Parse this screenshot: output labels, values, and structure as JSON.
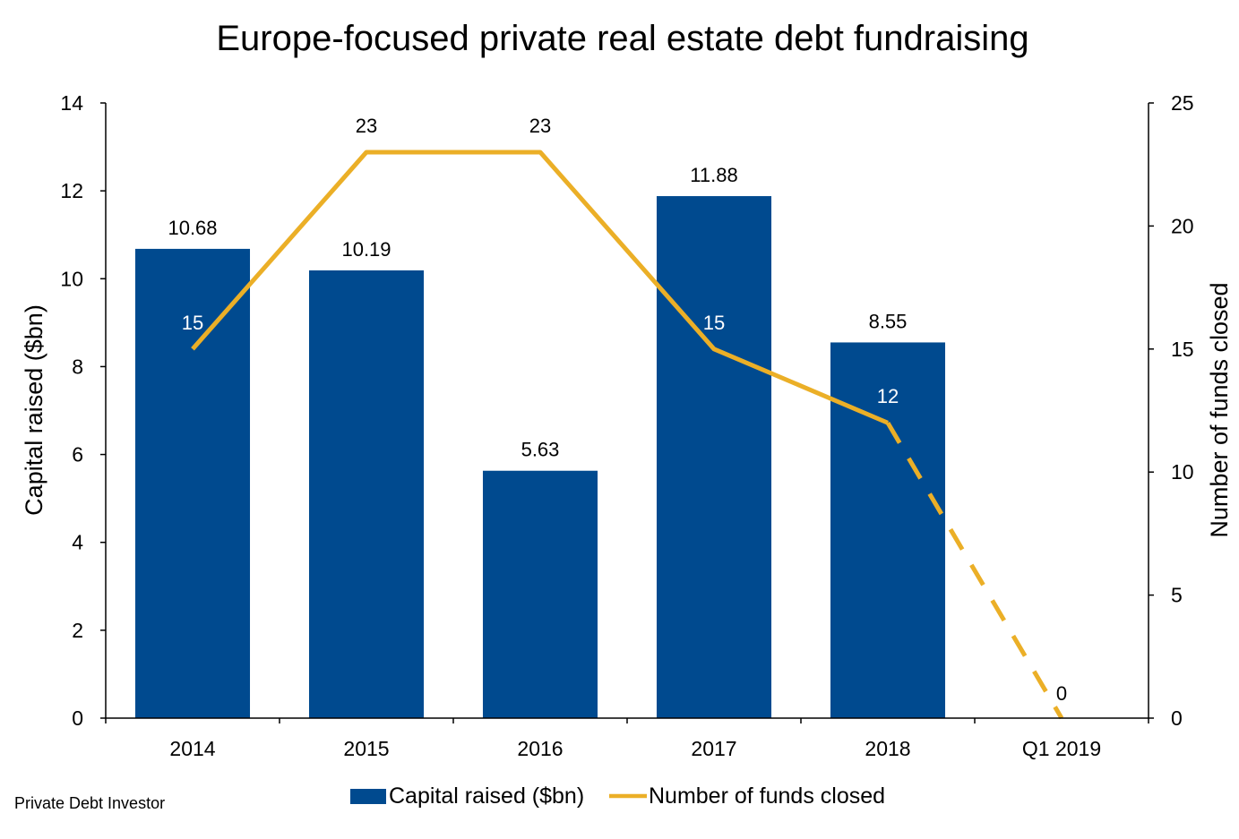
{
  "chart_data": {
    "type": "bar",
    "title": "Europe-focused private real estate debt fundraising",
    "categories": [
      "2014",
      "2015",
      "2016",
      "2017",
      "2018",
      "Q1 2019"
    ],
    "ylabel": "Capital raised ($bn)",
    "y2label": "Number of funds closed",
    "ylim": [
      0,
      14
    ],
    "y2lim": [
      0,
      25
    ],
    "yticks": [
      0,
      2,
      4,
      6,
      8,
      10,
      12,
      14
    ],
    "y2ticks": [
      0,
      5,
      10,
      15,
      20,
      25
    ],
    "series": [
      {
        "name": "Capital raised ($bn)",
        "type": "bar",
        "axis": "left",
        "color": "#004A8F",
        "values": [
          10.68,
          10.19,
          5.63,
          11.88,
          8.55,
          null
        ],
        "labels": [
          "10.68",
          "10.19",
          "5.63",
          "11.88",
          "8.55",
          ""
        ]
      },
      {
        "name": "Number of funds closed",
        "type": "line",
        "axis": "right",
        "color": "#EBAF27",
        "values": [
          15,
          23,
          23,
          15,
          12,
          0
        ],
        "labels": [
          "15",
          "23",
          "23",
          "15",
          "12",
          "0"
        ],
        "dashed_last_segment": true
      }
    ],
    "legend_position": "bottom",
    "grid": false
  },
  "source": "Private Debt Investor"
}
